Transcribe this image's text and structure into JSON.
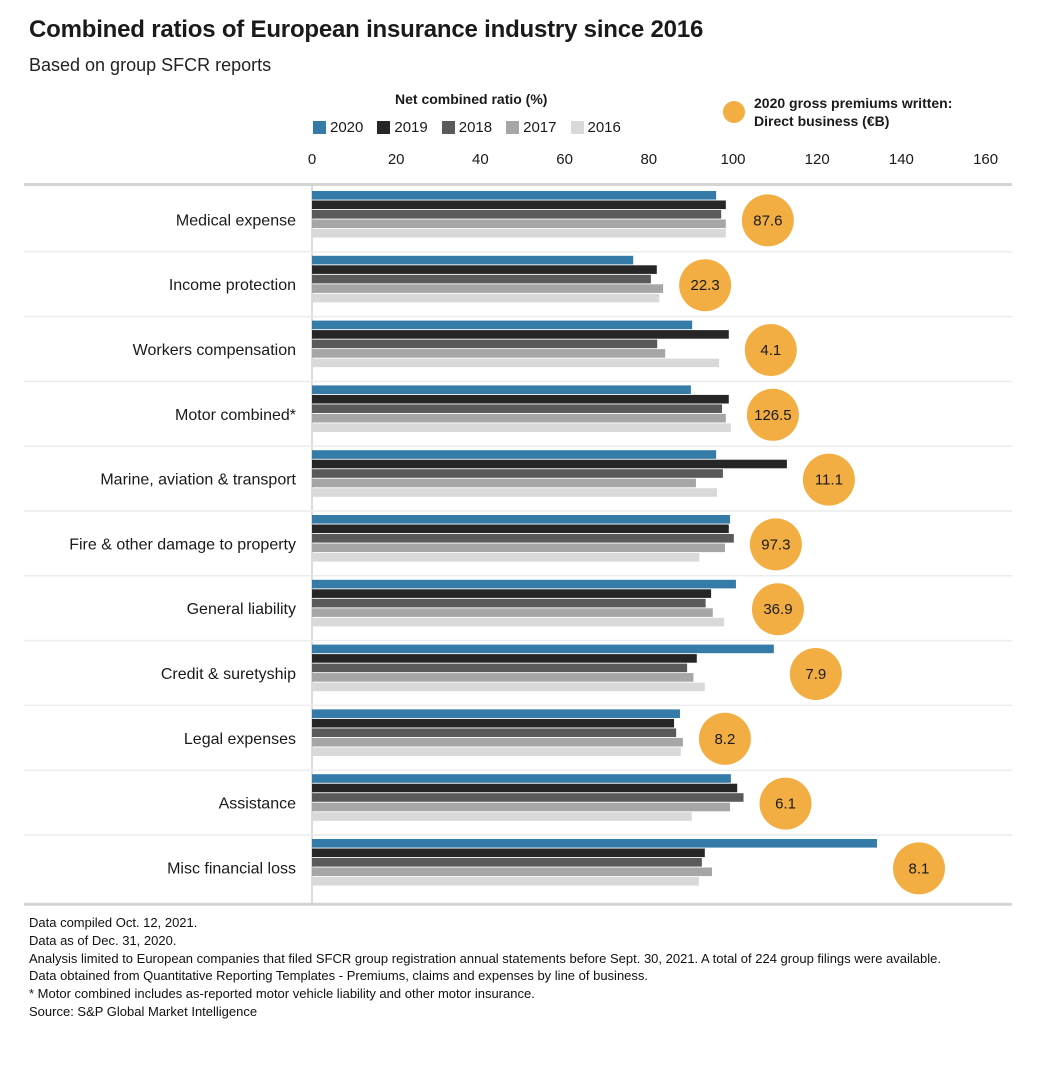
{
  "title": "Combined ratios of European insurance industry since 2016",
  "subtitle": "Based on group SFCR reports",
  "legend": {
    "title": "Net combined ratio (%)",
    "bubble_label_line1": "2020 gross premiums written:",
    "bubble_label_line2": "Direct business (€B)",
    "bubble_color": "#f2ae43"
  },
  "chart_data": {
    "type": "bar",
    "orientation": "horizontal",
    "title": "Combined ratios of European insurance industry since 2016",
    "xlabel": "Net combined ratio (%)",
    "ylabel": "",
    "xlim": [
      0,
      160
    ],
    "xticks": [
      0,
      20,
      40,
      60,
      80,
      100,
      120,
      140,
      160
    ],
    "grid": false,
    "legend_position": "top",
    "categories": [
      "Medical expense",
      "Income protection",
      "Workers compensation",
      "Motor combined*",
      "Marine, aviation & transport",
      "Fire & other damage to property",
      "General liability",
      "Credit & suretyship",
      "Legal expenses",
      "Assistance",
      "Misc financial loss"
    ],
    "series": [
      {
        "name": "2020",
        "color": "#357ba8",
        "values": [
          96.0,
          76.3,
          90.3,
          90.0,
          96.0,
          99.3,
          100.7,
          109.7,
          87.4,
          99.5,
          134.2
        ]
      },
      {
        "name": "2019",
        "color": "#262626",
        "values": [
          98.3,
          81.9,
          99.0,
          99.0,
          112.8,
          99.0,
          94.8,
          91.4,
          86.0,
          101.0,
          93.3
        ]
      },
      {
        "name": "2018",
        "color": "#5a5a5a",
        "values": [
          97.2,
          80.5,
          82.0,
          97.4,
          97.6,
          100.2,
          93.5,
          89.1,
          86.5,
          102.5,
          92.6
        ]
      },
      {
        "name": "2017",
        "color": "#a6a6a6",
        "values": [
          98.3,
          83.4,
          83.9,
          98.3,
          91.2,
          98.1,
          95.2,
          90.6,
          88.1,
          99.3,
          95.0
        ]
      },
      {
        "name": "2016",
        "color": "#d9d9d9",
        "values": [
          98.3,
          82.5,
          96.7,
          99.5,
          96.2,
          92.0,
          97.9,
          93.3,
          87.6,
          90.2,
          91.9
        ]
      }
    ],
    "bubbles": {
      "name": "2020 gross premiums written: Direct business (€B)",
      "values": [
        "87.6",
        "22.3",
        "4.1",
        "126.5",
        "11.1",
        "97.3",
        "36.9",
        "7.9",
        "8.2",
        "6.1",
        "8.1"
      ]
    }
  },
  "notes": [
    "Data compiled Oct. 12, 2021.",
    "Data as of Dec. 31, 2020.",
    "Analysis limited to European companies that filed SFCR group registration annual statements before Sept. 30, 2021. A total of 224 group filings were available.",
    "Data obtained from Quantitative Reporting Templates - Premiums, claims and expenses by line of business.",
    "* Motor combined includes as-reported motor vehicle liability and other motor insurance.",
    "Source: S&P Global Market Intelligence"
  ]
}
